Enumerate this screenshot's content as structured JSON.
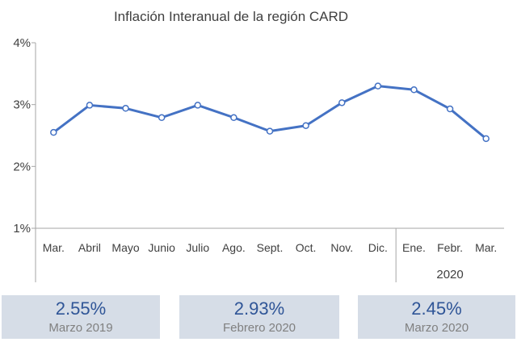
{
  "chart_data": {
    "type": "line",
    "title": "Inflación Interanual de la región CARD",
    "categories": [
      "Mar.",
      "Abril",
      "Mayo",
      "Junio",
      "Julio",
      "Ago.",
      "Sept.",
      "Oct.",
      "Nov.",
      "Dic.",
      "Ene.",
      "Febr.",
      "Mar."
    ],
    "year_group": {
      "label": "2020",
      "from_index": 10
    },
    "yticks": [
      "4%",
      "3%",
      "2%",
      "1%"
    ],
    "ylim": [
      1,
      4
    ],
    "series": [
      {
        "values": [
          2.55,
          2.99,
          2.94,
          2.79,
          2.99,
          2.79,
          2.57,
          2.66,
          3.03,
          3.3,
          3.24,
          2.93,
          2.45
        ],
        "color": "#4472c4"
      }
    ],
    "grid": false
  },
  "stats": [
    {
      "value": "2.55%",
      "label": "Marzo 2019"
    },
    {
      "value": "2.93%",
      "label": "Febrero 2020"
    },
    {
      "value": "2.45%",
      "label": "Marzo 2020"
    }
  ],
  "colors": {
    "line": "#4472c4",
    "marker_fill": "#ffffff",
    "axis": "#a6a6a6",
    "box": "#d6dde7",
    "stat_value": "#2f5597"
  }
}
